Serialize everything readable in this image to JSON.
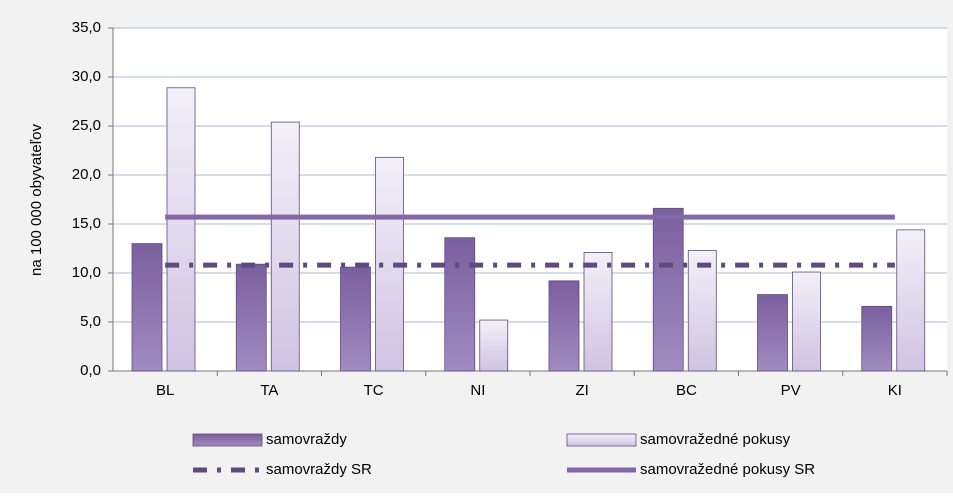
{
  "chart_data": {
    "type": "bar",
    "y_label": "na 100 000 obyvateľov",
    "categories": [
      "BL",
      "TA",
      "TC",
      "NI",
      "ZI",
      "BC",
      "PV",
      "KI"
    ],
    "series": [
      {
        "name": "samovraždy",
        "type": "bar",
        "color": "#7a5f9e",
        "values": [
          13.0,
          10.9,
          10.6,
          13.6,
          9.2,
          16.6,
          7.8,
          6.6
        ]
      },
      {
        "name": "samovražedné pokusy",
        "type": "bar",
        "color": "#e4ddef",
        "values": [
          28.9,
          25.4,
          21.8,
          5.2,
          12.1,
          12.3,
          10.1,
          14.4
        ]
      },
      {
        "name": "samovraždy SR",
        "type": "line",
        "line_style": "dash-dot",
        "color": "#5f4a7e",
        "values": [
          10.8,
          10.8,
          10.8,
          10.8,
          10.8,
          10.8,
          10.8,
          10.8
        ]
      },
      {
        "name": "samovražedné pokusy SR",
        "type": "line",
        "line_style": "solid",
        "color": "#8467a8",
        "values": [
          15.7,
          15.7,
          15.7,
          15.7,
          15.7,
          15.7,
          15.7,
          15.7
        ]
      }
    ],
    "ylim": [
      0,
      35
    ],
    "yticks": [
      {
        "value": 0,
        "label": "0,0"
      },
      {
        "value": 5,
        "label": "5,0"
      },
      {
        "value": 10,
        "label": "10,0"
      },
      {
        "value": 15,
        "label": "15,0"
      },
      {
        "value": 20,
        "label": "20,0"
      },
      {
        "value": 25,
        "label": "25,0"
      },
      {
        "value": 30,
        "label": "30,0"
      },
      {
        "value": 35,
        "label": "35,0"
      }
    ],
    "grid": true,
    "legend": "bottom"
  }
}
